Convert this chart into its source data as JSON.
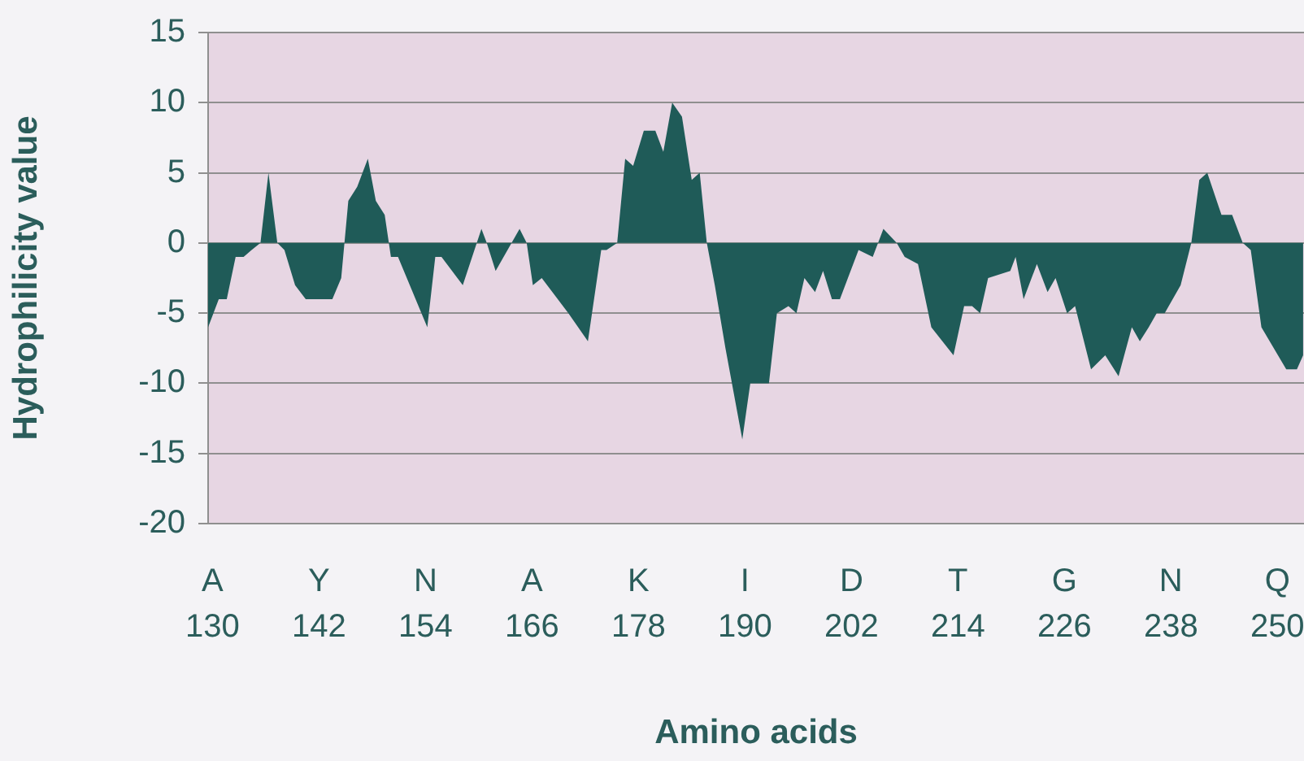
{
  "chart_data": {
    "type": "area",
    "xlabel": "Amino acids",
    "ylabel": "Hydrophilicity value",
    "x": [
      129.5,
      130.7,
      131.6,
      132.6,
      133.5,
      134.4,
      135.4,
      136.3,
      137.3,
      138.1,
      139.3,
      140.5,
      143.5,
      144.5,
      145.3,
      146.3,
      147.5,
      148.4,
      149.4,
      150.1,
      150.9,
      154.2,
      155.1,
      155.8,
      158.2,
      160.3,
      160.9,
      161.9,
      164.6,
      165.4,
      166.1,
      167.1,
      170.1,
      172.3,
      173.8,
      174.4,
      175.6,
      176.5,
      177.4,
      178.6,
      179.9,
      180.8,
      181.8,
      182.9,
      184.0,
      184.9,
      185.7,
      186.6,
      187.8,
      189.7,
      190.6,
      192.7,
      193.6,
      194.9,
      195.8,
      196.7,
      197.9,
      198.8,
      199.8,
      200.7,
      201.6,
      202.8,
      204.4,
      205.6,
      207.1,
      208.0,
      209.5,
      211.0,
      213.5,
      214.7,
      215.6,
      216.5,
      217.4,
      219.9,
      220.5,
      221.4,
      222.9,
      224.1,
      225.0,
      226.3,
      227.2,
      229.0,
      230.6,
      232.1,
      233.6,
      234.5,
      235.5,
      236.4,
      237.3,
      239.1,
      240.3,
      241.2,
      242.1,
      243.7,
      244.9,
      246.1,
      247.0,
      248.2,
      251.0,
      252.2,
      252.9
    ],
    "values": [
      -6,
      -4,
      -4,
      -1,
      -1,
      -0.5,
      0,
      5,
      0,
      -0.5,
      -3,
      -4,
      -4,
      -2.5,
      3,
      4,
      6,
      3,
      2,
      -1,
      -1,
      -6,
      -1,
      -1,
      -3,
      1,
      0,
      -2,
      1,
      0,
      -3,
      -2.5,
      -5,
      -7,
      -0.5,
      -0.5,
      0,
      6,
      5.5,
      8,
      8,
      6.5,
      10,
      9,
      4.5,
      5,
      0,
      -3,
      -7.5,
      -14,
      -10,
      -10,
      -5,
      -4.5,
      -5,
      -2.5,
      -3.5,
      -2,
      -4,
      -4,
      -2.5,
      -0.5,
      -1,
      1,
      0,
      -1,
      -1.5,
      -6,
      -8,
      -4.5,
      -4.5,
      -5,
      -2.5,
      -2,
      -1,
      -4,
      -1.5,
      -3.5,
      -2.5,
      -5,
      -4.5,
      -9,
      -8,
      -9.5,
      -6,
      -7,
      -6,
      -5,
      -5,
      -3,
      0,
      4.5,
      5,
      2,
      2,
      0,
      -0.5,
      -6,
      -9,
      -9,
      -8
    ],
    "color": "#1f5b58",
    "xlim": [
      129.5,
      253
    ],
    "xticks": [
      130,
      142,
      154,
      166,
      178,
      190,
      202,
      214,
      226,
      238,
      250
    ],
    "annotations": [
      "A",
      "Y",
      "N",
      "A",
      "K",
      "I",
      "D",
      "T",
      "G",
      "N",
      "Q"
    ],
    "ylim": [
      -20,
      15
    ],
    "yticks": [
      -20,
      -15,
      -10,
      -5,
      0,
      5,
      10,
      15
    ],
    "grid": "y",
    "legend": false
  }
}
